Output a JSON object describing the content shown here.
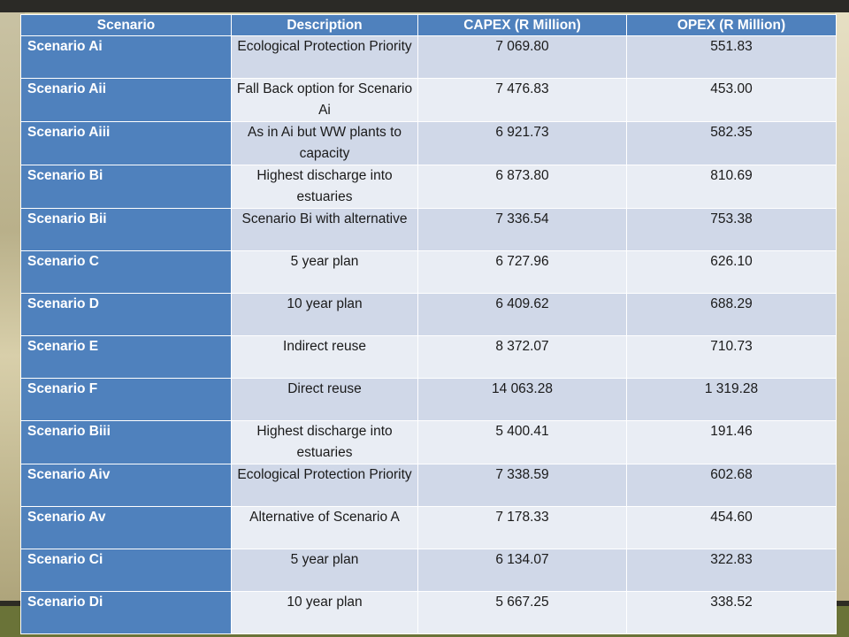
{
  "table": {
    "headers": [
      "Scenario",
      "Description",
      "CAPEX (R Million)",
      "OPEX (R Million)"
    ],
    "rows": [
      {
        "scenario": "Scenario Ai",
        "description": "Ecological Protection Priority",
        "capex": "7 069.80",
        "opex": "551.83"
      },
      {
        "scenario": "Scenario Aii",
        "description": "Fall Back option for Scenario Ai",
        "capex": "7 476.83",
        "opex": "453.00"
      },
      {
        "scenario": "Scenario Aiii",
        "description": "As in Ai but WW plants to capacity",
        "capex": "6 921.73",
        "opex": "582.35"
      },
      {
        "scenario": "Scenario Bi",
        "description": "Highest discharge into estuaries",
        "capex": "6 873.80",
        "opex": "810.69"
      },
      {
        "scenario": "Scenario Bii",
        "description": "Scenario Bi with alternative",
        "capex": "7 336.54",
        "opex": "753.38"
      },
      {
        "scenario": "Scenario C",
        "description": "5 year plan",
        "capex": "6 727.96",
        "opex": "626.10"
      },
      {
        "scenario": "Scenario D",
        "description": "10 year plan",
        "capex": "6 409.62",
        "opex": "688.29"
      },
      {
        "scenario": "Scenario E",
        "description": "Indirect reuse",
        "capex": "8 372.07",
        "opex": "710.73"
      },
      {
        "scenario": "Scenario F",
        "description": "Direct reuse",
        "capex": "14 063.28",
        "opex": "1 319.28"
      },
      {
        "scenario": "Scenario Biii",
        "description": "Highest discharge into estuaries",
        "capex": "5 400.41",
        "opex": "191.46"
      },
      {
        "scenario": "Scenario Aiv",
        "description": "Ecological Protection Priority",
        "capex": "7 338.59",
        "opex": "602.68"
      },
      {
        "scenario": "Scenario Av",
        "description": "Alternative of Scenario A",
        "capex": "7 178.33",
        "opex": "454.60"
      },
      {
        "scenario": "Scenario Ci",
        "description": "5 year plan",
        "capex": "6 134.07",
        "opex": "322.83"
      },
      {
        "scenario": "Scenario Di",
        "description": "10 year plan",
        "capex": "5 667.25",
        "opex": "338.52"
      }
    ]
  },
  "colors": {
    "header_fill": "#4f81bd",
    "row_band_dark": "#d0d8e8",
    "row_band_light": "#e9edf4"
  }
}
